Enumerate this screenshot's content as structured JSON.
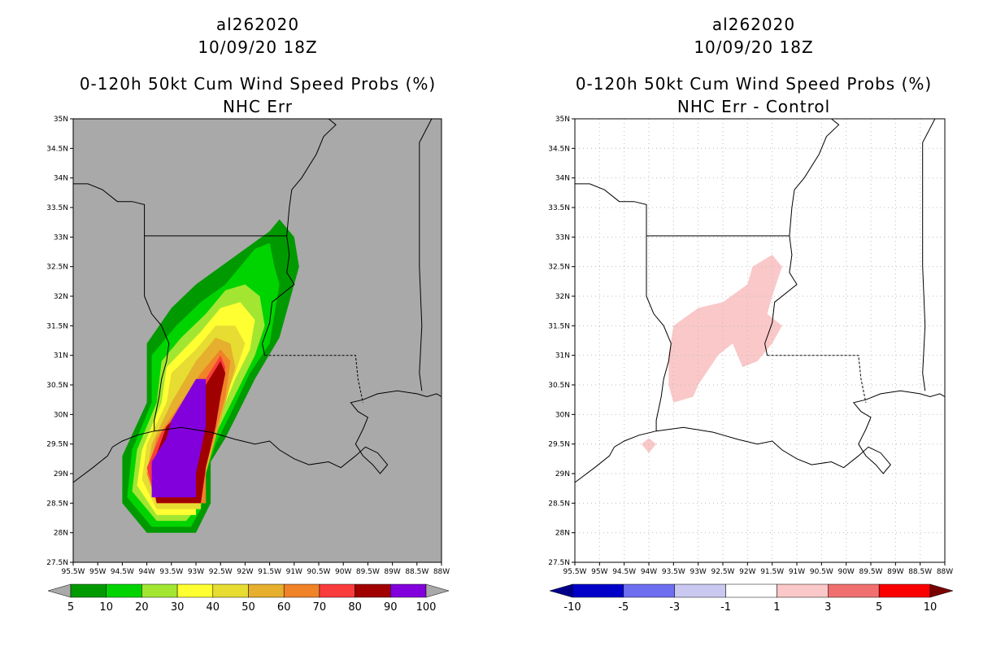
{
  "chart_data": [
    {
      "type": "heatmap",
      "storm_id": "al262020",
      "datetime": "10/09/20 18Z",
      "title": "0-120h 50kt Cum Wind Speed Probs (%)",
      "subtitle": "NHC Err",
      "x_ticks": [
        "95.5W",
        "95W",
        "94.5W",
        "94W",
        "93.5W",
        "93W",
        "92.5W",
        "92W",
        "91.5W",
        "91W",
        "90.5W",
        "90W",
        "89.5W",
        "89W",
        "88.5W",
        "88W"
      ],
      "y_ticks": [
        "27.5N",
        "28N",
        "28.5N",
        "29N",
        "29.5N",
        "30N",
        "30.5N",
        "31N",
        "31.5N",
        "32N",
        "32.5N",
        "33N",
        "33.5N",
        "34N",
        "34.5N",
        "35N"
      ],
      "xlim": [
        -95.5,
        -88
      ],
      "ylim": [
        27.5,
        35
      ],
      "grid": false,
      "background": "#a9a9a9",
      "colorbar": {
        "labels": [
          "5",
          "10",
          "20",
          "30",
          "40",
          "50",
          "60",
          "70",
          "80",
          "90",
          "100"
        ],
        "colors": [
          "#009a00",
          "#00d400",
          "#a2e632",
          "#ffff32",
          "#e6dc32",
          "#e6af2d",
          "#f08228",
          "#fa3c3c",
          "#a00000",
          "#8200dc"
        ],
        "under": "#a9a9a9",
        "over": "#a9a9a9"
      },
      "contours": [
        {
          "level": 5,
          "color": "#009a00",
          "points": [
            [
              -92.5,
              32.5
            ],
            [
              -91.5,
              33.1
            ],
            [
              -91.3,
              33.3
            ],
            [
              -91.0,
              33.0
            ],
            [
              -90.9,
              32.5
            ],
            [
              -91.3,
              31.3
            ],
            [
              -91.8,
              30.6
            ],
            [
              -92.1,
              30.1
            ],
            [
              -92.4,
              29.6
            ],
            [
              -92.7,
              29.2
            ],
            [
              -92.7,
              28.5
            ],
            [
              -93.0,
              28.0
            ],
            [
              -93.0,
              28.0
            ],
            [
              -94.0,
              28.0
            ],
            [
              -94.5,
              28.5
            ],
            [
              -94.5,
              29.3
            ],
            [
              -94.0,
              30.2
            ],
            [
              -94.0,
              31.2
            ],
            [
              -93.5,
              31.8
            ],
            [
              -93.0,
              32.2
            ]
          ]
        },
        {
          "level": 10,
          "color": "#00d400",
          "points": [
            [
              -92.4,
              32.2
            ],
            [
              -91.8,
              32.8
            ],
            [
              -91.5,
              32.9
            ],
            [
              -91.4,
              32.5
            ],
            [
              -91.3,
              32.2
            ],
            [
              -91.5,
              31.2
            ],
            [
              -91.9,
              30.7
            ],
            [
              -92.3,
              30.0
            ],
            [
              -92.6,
              29.5
            ],
            [
              -92.8,
              29.0
            ],
            [
              -92.9,
              28.4
            ],
            [
              -93.1,
              28.1
            ],
            [
              -93.9,
              28.1
            ],
            [
              -94.4,
              28.6
            ],
            [
              -94.3,
              29.4
            ],
            [
              -93.9,
              30.2
            ],
            [
              -93.9,
              31.0
            ],
            [
              -93.4,
              31.5
            ],
            [
              -92.9,
              31.9
            ]
          ]
        },
        {
          "level": 20,
          "color": "#a2e632",
          "points": [
            [
              -92.8,
              31.7
            ],
            [
              -92.4,
              32.1
            ],
            [
              -92.0,
              32.2
            ],
            [
              -91.7,
              32.0
            ],
            [
              -91.6,
              31.5
            ],
            [
              -91.8,
              31.0
            ],
            [
              -92.1,
              30.5
            ],
            [
              -92.4,
              30.0
            ],
            [
              -92.7,
              29.5
            ],
            [
              -92.9,
              28.9
            ],
            [
              -93.0,
              28.4
            ],
            [
              -93.2,
              28.2
            ],
            [
              -93.8,
              28.2
            ],
            [
              -94.3,
              28.7
            ],
            [
              -94.2,
              29.4
            ],
            [
              -93.8,
              30.2
            ],
            [
              -93.7,
              30.9
            ],
            [
              -93.3,
              31.3
            ]
          ]
        },
        {
          "level": 30,
          "color": "#ffff32",
          "points": [
            [
              -92.9,
              31.4
            ],
            [
              -92.5,
              31.8
            ],
            [
              -92.1,
              31.9
            ],
            [
              -91.8,
              31.6
            ],
            [
              -91.9,
              31.1
            ],
            [
              -92.2,
              30.6
            ],
            [
              -92.5,
              30.0
            ],
            [
              -92.8,
              29.4
            ],
            [
              -93.0,
              28.8
            ],
            [
              -93.0,
              28.3
            ],
            [
              -93.8,
              28.3
            ],
            [
              -94.2,
              28.8
            ],
            [
              -94.1,
              29.4
            ],
            [
              -93.7,
              30.2
            ],
            [
              -93.6,
              30.8
            ]
          ]
        },
        {
          "level": 40,
          "color": "#e6dc32",
          "points": [
            [
              -93.0,
              31.1
            ],
            [
              -92.6,
              31.5
            ],
            [
              -92.2,
              31.5
            ],
            [
              -92.0,
              31.2
            ],
            [
              -92.2,
              30.7
            ],
            [
              -92.5,
              30.1
            ],
            [
              -92.7,
              29.5
            ],
            [
              -92.9,
              28.9
            ],
            [
              -92.9,
              28.4
            ],
            [
              -93.8,
              28.4
            ],
            [
              -94.1,
              28.9
            ],
            [
              -94.0,
              29.5
            ],
            [
              -93.6,
              30.2
            ],
            [
              -93.5,
              30.7
            ]
          ]
        },
        {
          "level": 50,
          "color": "#e6af2d",
          "points": [
            [
              -93.0,
              30.9
            ],
            [
              -92.6,
              31.3
            ],
            [
              -92.3,
              31.2
            ],
            [
              -92.2,
              30.8
            ],
            [
              -92.4,
              30.2
            ],
            [
              -92.6,
              29.6
            ],
            [
              -92.8,
              29.0
            ],
            [
              -92.8,
              28.5
            ],
            [
              -93.8,
              28.5
            ],
            [
              -94.0,
              29.0
            ],
            [
              -93.9,
              29.5
            ],
            [
              -93.5,
              30.2
            ]
          ]
        },
        {
          "level": 60,
          "color": "#f08228",
          "points": [
            [
              -92.9,
              30.7
            ],
            [
              -92.5,
              31.1
            ],
            [
              -92.3,
              30.9
            ],
            [
              -92.4,
              30.3
            ],
            [
              -92.6,
              29.7
            ],
            [
              -92.8,
              29.1
            ],
            [
              -92.8,
              28.5
            ],
            [
              -93.8,
              28.5
            ],
            [
              -94.0,
              29.0
            ],
            [
              -93.8,
              29.6
            ],
            [
              -93.3,
              30.2
            ]
          ]
        },
        {
          "level": 70,
          "color": "#fa3c3c",
          "points": [
            [
              -92.8,
              30.6
            ],
            [
              -92.5,
              31.0
            ],
            [
              -92.4,
              30.8
            ],
            [
              -92.5,
              30.3
            ],
            [
              -92.6,
              29.8
            ],
            [
              -92.8,
              29.1
            ],
            [
              -92.9,
              28.5
            ],
            [
              -93.8,
              28.5
            ],
            [
              -94.0,
              29.1
            ],
            [
              -93.7,
              29.7
            ],
            [
              -93.2,
              30.2
            ]
          ]
        },
        {
          "level": 80,
          "color": "#a00000",
          "points": [
            [
              -92.8,
              30.5
            ],
            [
              -92.5,
              30.9
            ],
            [
              -92.4,
              30.7
            ],
            [
              -92.5,
              30.3
            ],
            [
              -92.6,
              29.8
            ],
            [
              -92.8,
              29.1
            ],
            [
              -92.9,
              28.5
            ],
            [
              -93.8,
              28.5
            ],
            [
              -93.9,
              29.1
            ],
            [
              -93.6,
              29.8
            ],
            [
              -93.1,
              30.2
            ]
          ]
        },
        {
          "level": 90,
          "color": "#8200dc",
          "points": [
            [
              -93.0,
              30.6
            ],
            [
              -92.8,
              30.6
            ],
            [
              -92.8,
              30.2
            ],
            [
              -92.8,
              29.8
            ],
            [
              -93.0,
              29.0
            ],
            [
              -93.0,
              28.6
            ],
            [
              -93.9,
              28.6
            ],
            [
              -93.9,
              29.2
            ],
            [
              -93.6,
              29.6
            ],
            [
              -93.5,
              29.9
            ]
          ]
        }
      ]
    },
    {
      "type": "heatmap",
      "storm_id": "al262020",
      "datetime": "10/09/20 18Z",
      "title": "0-120h 50kt Cum Wind Speed Probs (%)",
      "subtitle": "NHC Err - Control",
      "x_ticks": [
        "95.5W",
        "95W",
        "94.5W",
        "94W",
        "93.5W",
        "93W",
        "92.5W",
        "92W",
        "91.5W",
        "91W",
        "90.5W",
        "90W",
        "89.5W",
        "89W",
        "88.5W",
        "88W"
      ],
      "y_ticks": [
        "27.5N",
        "28N",
        "28.5N",
        "29N",
        "29.5N",
        "30N",
        "30.5N",
        "31N",
        "31.5N",
        "32N",
        "32.5N",
        "33N",
        "33.5N",
        "34N",
        "34.5N",
        "35N"
      ],
      "xlim": [
        -95.5,
        -88
      ],
      "ylim": [
        27.5,
        35
      ],
      "grid": true,
      "background": "#ffffff",
      "colorbar": {
        "labels": [
          "-10",
          "-5",
          "-3",
          "-1",
          "1",
          "3",
          "5",
          "10"
        ],
        "colors": [
          "#0000c8",
          "#6e6ef0",
          "#c8c8f0",
          "#ffffff",
          "#fac8c8",
          "#f07070",
          "#fa0000"
        ],
        "under": "#00008b",
        "over": "#7a0000"
      },
      "contours": [
        {
          "level": 1,
          "color": "#fac8c8",
          "points": [
            [
              -93.5,
              31.5
            ],
            [
              -93.0,
              31.8
            ],
            [
              -92.5,
              31.9
            ],
            [
              -92.0,
              32.2
            ],
            [
              -91.9,
              32.5
            ],
            [
              -91.5,
              32.7
            ],
            [
              -91.3,
              32.5
            ],
            [
              -91.5,
              32.0
            ],
            [
              -91.6,
              31.7
            ],
            [
              -91.3,
              31.5
            ],
            [
              -91.5,
              31.2
            ],
            [
              -91.8,
              30.9
            ],
            [
              -92.1,
              30.8
            ],
            [
              -92.2,
              31.0
            ],
            [
              -92.3,
              31.2
            ],
            [
              -92.6,
              31.0
            ],
            [
              -93.0,
              30.5
            ],
            [
              -93.1,
              30.3
            ],
            [
              -93.5,
              30.2
            ],
            [
              -93.6,
              30.5
            ],
            [
              -93.6,
              31.0
            ]
          ]
        },
        {
          "level": 1,
          "color": "#fac8c8",
          "points": [
            [
              -94.0,
              29.6
            ],
            [
              -93.85,
              29.5
            ],
            [
              -94.0,
              29.35
            ],
            [
              -94.15,
              29.5
            ]
          ]
        }
      ]
    }
  ]
}
